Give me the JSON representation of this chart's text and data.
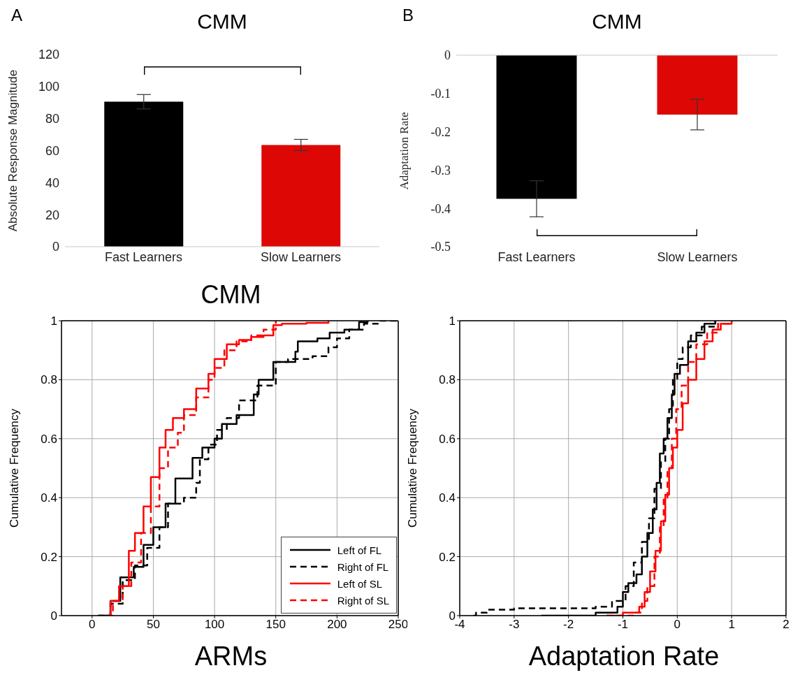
{
  "chart_data": [
    {
      "type": "bar",
      "title": "CMM",
      "annotations": [
        "A"
      ],
      "ylabel": "Absolute Response Magnitude",
      "categories": [
        "Fast Learners",
        "Slow Learners"
      ],
      "values": [
        90.5,
        63.5
      ],
      "colors": [
        "#000000",
        "#dd0806"
      ],
      "errors": [
        4.5,
        3.5
      ],
      "ylim": [
        0,
        120
      ],
      "yticks": [
        0,
        20,
        40,
        60,
        80,
        100,
        120
      ]
    },
    {
      "type": "bar",
      "title": "CMM",
      "annotations": [
        "B"
      ],
      "ylabel": "Adaptation Rate",
      "categories": [
        "Fast Learners",
        "Slow Learners"
      ],
      "values": [
        -0.375,
        -0.155
      ],
      "colors": [
        "#000000",
        "#dd0806"
      ],
      "errors": [
        0.047,
        0.04
      ],
      "ylim": [
        -0.5,
        0
      ],
      "yticks": [
        -0.5,
        -0.4,
        -0.3,
        -0.2,
        -0.1,
        0
      ]
    },
    {
      "type": "step",
      "title": "CMM",
      "xlabel": "ARMs",
      "ylabel": "Cumulative Frequency",
      "xlim": [
        -25,
        250
      ],
      "xticks": [
        0,
        50,
        100,
        150,
        200,
        250
      ],
      "ylim": [
        0,
        1
      ],
      "yticks": [
        0,
        0.2,
        0.4,
        0.6,
        0.8,
        1
      ],
      "grid": true,
      "legend": "bottom right",
      "series": [
        {
          "name": "Left of FL",
          "color": "#000000",
          "line_style": "solid",
          "x": [
            5,
            15,
            23,
            34,
            42,
            50,
            60,
            68,
            82,
            90,
            100,
            106,
            118,
            132,
            136,
            148,
            166,
            168,
            184,
            194,
            206,
            218,
            225
          ],
          "values": [
            0,
            0.05,
            0.13,
            0.165,
            0.24,
            0.3,
            0.38,
            0.465,
            0.535,
            0.57,
            0.6,
            0.65,
            0.68,
            0.75,
            0.8,
            0.86,
            0.895,
            0.93,
            0.94,
            0.96,
            0.97,
            0.995,
            1
          ]
        },
        {
          "name": "Right of FL",
          "color": "#000000",
          "line_style": "dashed",
          "x": [
            5,
            15,
            25,
            35,
            45,
            55,
            62,
            75,
            85,
            88,
            95,
            102,
            110,
            120,
            135,
            150,
            160,
            180,
            193,
            200,
            210,
            222,
            235,
            250
          ],
          "values": [
            0,
            0.04,
            0.12,
            0.17,
            0.23,
            0.3,
            0.38,
            0.4,
            0.45,
            0.53,
            0.58,
            0.63,
            0.67,
            0.73,
            0.78,
            0.86,
            0.87,
            0.88,
            0.91,
            0.94,
            0.97,
            0.99,
            1,
            1
          ]
        },
        {
          "name": "Left of SL",
          "color": "#ff0000",
          "line_style": "solid",
          "x": [
            12,
            15,
            22,
            30,
            35,
            42,
            48,
            55,
            60,
            66,
            75,
            85,
            95,
            100,
            110,
            120,
            130,
            140,
            148,
            155,
            175,
            193
          ],
          "values": [
            0,
            0.05,
            0.1,
            0.22,
            0.28,
            0.37,
            0.47,
            0.57,
            0.63,
            0.67,
            0.7,
            0.77,
            0.82,
            0.87,
            0.92,
            0.935,
            0.945,
            0.95,
            0.985,
            0.99,
            0.993,
            1
          ]
        },
        {
          "name": "Right of SL",
          "color": "#ff0000",
          "line_style": "dashed",
          "x": [
            12,
            17,
            25,
            32,
            40,
            48,
            55,
            62,
            70,
            75,
            85,
            95,
            100,
            108,
            118,
            130,
            140,
            150
          ],
          "values": [
            0,
            0.05,
            0.1,
            0.18,
            0.28,
            0.37,
            0.5,
            0.57,
            0.62,
            0.68,
            0.74,
            0.8,
            0.84,
            0.9,
            0.93,
            0.95,
            0.97,
            1
          ]
        }
      ]
    },
    {
      "type": "step",
      "xlabel": "Adaptation Rate",
      "ylabel": "Cumulative Frequency",
      "xlim": [
        -4,
        2
      ],
      "xticks": [
        -4,
        -3,
        -2,
        -1,
        0,
        1,
        2
      ],
      "ylim": [
        0,
        1
      ],
      "yticks": [
        0,
        0.2,
        0.4,
        0.6,
        0.8,
        1
      ],
      "grid": true,
      "series": [
        {
          "color": "#000000",
          "line_style": "solid",
          "x": [
            -2.5,
            -1.5,
            -1.1,
            -1.0,
            -0.9,
            -0.75,
            -0.65,
            -0.55,
            -0.45,
            -0.38,
            -0.32,
            -0.25,
            -0.18,
            -0.1,
            -0.05,
            0.05,
            0.2,
            0.35,
            0.5,
            0.7
          ],
          "values": [
            0,
            0.01,
            0.03,
            0.08,
            0.11,
            0.14,
            0.2,
            0.28,
            0.36,
            0.45,
            0.55,
            0.6,
            0.67,
            0.75,
            0.82,
            0.85,
            0.93,
            0.96,
            0.99,
            1
          ]
        },
        {
          "color": "#000000",
          "line_style": "dashed",
          "x": [
            -3.75,
            -3.7,
            -3.5,
            -3.0,
            -1.5,
            -1.2,
            -0.95,
            -0.8,
            -0.65,
            -0.52,
            -0.42,
            -0.3,
            -0.22,
            -0.15,
            -0.08,
            0,
            0.1,
            0.25,
            0.45,
            0.7
          ],
          "values": [
            0,
            0.01,
            0.02,
            0.025,
            0.03,
            0.05,
            0.1,
            0.18,
            0.25,
            0.33,
            0.43,
            0.52,
            0.6,
            0.7,
            0.8,
            0.87,
            0.91,
            0.95,
            0.98,
            1
          ]
        },
        {
          "color": "#ff0000",
          "line_style": "solid",
          "x": [
            -1.3,
            -1.0,
            -0.7,
            -0.6,
            -0.5,
            -0.4,
            -0.3,
            -0.22,
            -0.15,
            -0.08,
            0,
            0.1,
            0.2,
            0.35,
            0.5,
            0.65,
            0.8,
            1.0
          ],
          "values": [
            0,
            0.01,
            0.03,
            0.08,
            0.15,
            0.22,
            0.32,
            0.41,
            0.5,
            0.57,
            0.63,
            0.72,
            0.8,
            0.87,
            0.93,
            0.97,
            0.99,
            1
          ]
        },
        {
          "color": "#ff0000",
          "line_style": "dashed",
          "x": [
            -1.3,
            -0.8,
            -0.65,
            -0.55,
            -0.42,
            -0.32,
            -0.25,
            -0.18,
            -0.1,
            -0.02,
            0.08,
            0.2,
            0.35,
            0.55,
            0.75,
            1.0
          ],
          "values": [
            0,
            0.01,
            0.05,
            0.1,
            0.2,
            0.3,
            0.4,
            0.5,
            0.6,
            0.7,
            0.78,
            0.86,
            0.92,
            0.96,
            0.99,
            1
          ]
        }
      ]
    }
  ]
}
